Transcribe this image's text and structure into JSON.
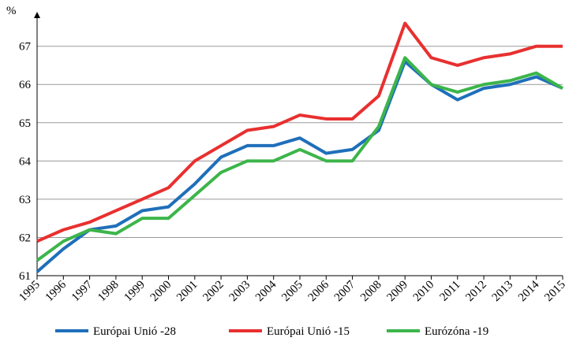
{
  "chart_data": {
    "type": "line",
    "y_label": "%",
    "categories": [
      "1995",
      "1996",
      "1997",
      "1998",
      "1999",
      "2000",
      "2001",
      "2002",
      "2003",
      "2004",
      "2005",
      "2006",
      "2007",
      "2008",
      "2009",
      "2010",
      "2011",
      "2012",
      "2013",
      "2014",
      "2015"
    ],
    "series": [
      {
        "name": "Európai Unió -28",
        "color": "#1f6fba",
        "values": [
          61.1,
          61.7,
          62.2,
          62.3,
          62.7,
          62.8,
          63.4,
          64.1,
          64.4,
          64.4,
          64.6,
          64.2,
          64.3,
          64.8,
          66.6,
          66.0,
          65.6,
          65.9,
          66.0,
          66.2,
          65.9
        ]
      },
      {
        "name": "Európai Unió -15",
        "color": "#e8302f",
        "values": [
          61.9,
          62.2,
          62.4,
          62.7,
          63.0,
          63.3,
          64.0,
          64.4,
          64.8,
          64.9,
          65.2,
          65.1,
          65.1,
          65.7,
          67.6,
          66.7,
          66.5,
          66.7,
          66.8,
          67.0,
          67.0
        ]
      },
      {
        "name": "Eurózóna -19",
        "color": "#3cb54a",
        "values": [
          61.4,
          61.9,
          62.2,
          62.1,
          62.5,
          62.5,
          63.1,
          63.7,
          64.0,
          64.0,
          64.3,
          64.0,
          64.0,
          64.9,
          66.7,
          66.0,
          65.8,
          66.0,
          66.1,
          66.3,
          65.9
        ]
      }
    ],
    "ylim": [
      61,
      67.9
    ],
    "yticks": [
      61,
      62,
      63,
      64,
      65,
      66,
      67
    ],
    "grid": true,
    "legend": "bottom"
  }
}
